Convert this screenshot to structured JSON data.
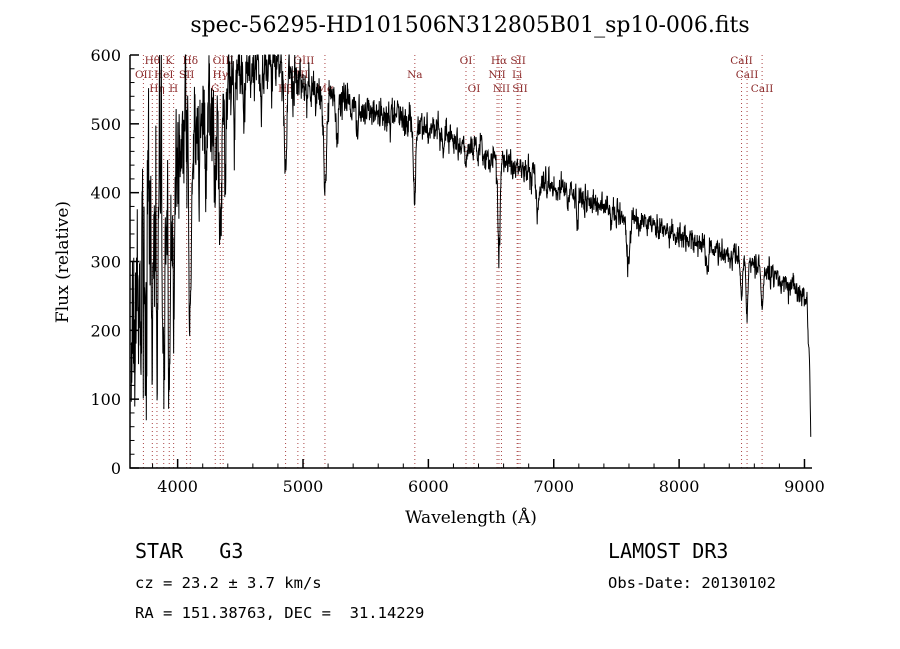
{
  "annotations": {
    "class_label": "STAR   G3",
    "survey": "LAMOST DR3",
    "cz": "cz = 23.2 ± 3.7 km/s",
    "obs_date": "Obs-Date: 20130102",
    "coords": "RA = 151.38763, DEC =  31.14229"
  },
  "colors": {
    "background": "#ffffff",
    "spectrum": "#000000",
    "axis": "#000000",
    "feature_line": "#aa4444",
    "feature_label": "#8b2a2a"
  },
  "chart_data": {
    "type": "line",
    "title": "spec-56295-HD101506N312805B01_sp10-006.fits",
    "xlabel": "Wavelength (Å)",
    "ylabel": "Flux (relative)",
    "xlim": [
      3620,
      9060
    ],
    "ylim": [
      0,
      600
    ],
    "x_major_ticks": [
      4000,
      5000,
      6000,
      7000,
      8000,
      9000
    ],
    "y_major_ticks": [
      0,
      100,
      200,
      300,
      400,
      500,
      600
    ],
    "x_minor_step": 200,
    "y_minor_step": 20,
    "sample_range": [
      3630,
      9050
    ],
    "sample_step": 2,
    "noise_seed": 56295,
    "noise_persistence": 0.45,
    "continuum_anchors": [
      [
        3630,
        170
      ],
      [
        3680,
        240
      ],
      [
        3720,
        280
      ],
      [
        3760,
        315
      ],
      [
        3800,
        345
      ],
      [
        3850,
        385
      ],
      [
        3900,
        420
      ],
      [
        3950,
        442
      ],
      [
        4000,
        462
      ],
      [
        4050,
        482
      ],
      [
        4100,
        500
      ],
      [
        4150,
        515
      ],
      [
        4200,
        530
      ],
      [
        4250,
        538
      ],
      [
        4300,
        546
      ],
      [
        4350,
        553
      ],
      [
        4400,
        560
      ],
      [
        4450,
        566
      ],
      [
        4500,
        572
      ],
      [
        4550,
        578
      ],
      [
        4600,
        584
      ],
      [
        4650,
        588
      ],
      [
        4700,
        590
      ],
      [
        4750,
        589
      ],
      [
        4800,
        586
      ],
      [
        4850,
        581
      ],
      [
        4900,
        576
      ],
      [
        4950,
        568
      ],
      [
        5000,
        561
      ],
      [
        5050,
        556
      ],
      [
        5100,
        551
      ],
      [
        5150,
        545
      ],
      [
        5200,
        541
      ],
      [
        5300,
        536
      ],
      [
        5400,
        529
      ],
      [
        5500,
        522
      ],
      [
        5600,
        516
      ],
      [
        5700,
        511
      ],
      [
        5800,
        507
      ],
      [
        5900,
        502
      ],
      [
        6000,
        493
      ],
      [
        6100,
        488
      ],
      [
        6200,
        478
      ],
      [
        6300,
        469
      ],
      [
        6400,
        459
      ],
      [
        6500,
        452
      ],
      [
        6600,
        446
      ],
      [
        6700,
        438
      ],
      [
        6800,
        429
      ],
      [
        6900,
        419
      ],
      [
        7000,
        409
      ],
      [
        7100,
        401
      ],
      [
        7200,
        393
      ],
      [
        7300,
        386
      ],
      [
        7400,
        379
      ],
      [
        7500,
        372
      ],
      [
        7600,
        363
      ],
      [
        7700,
        360
      ],
      [
        7800,
        353
      ],
      [
        7900,
        346
      ],
      [
        8000,
        338
      ],
      [
        8100,
        330
      ],
      [
        8200,
        323
      ],
      [
        8300,
        316
      ],
      [
        8400,
        309
      ],
      [
        8500,
        301
      ],
      [
        8600,
        293
      ],
      [
        8700,
        285
      ],
      [
        8800,
        273
      ],
      [
        8900,
        262
      ],
      [
        9000,
        247
      ],
      [
        9020,
        237
      ],
      [
        9040,
        160
      ],
      [
        9050,
        40
      ]
    ],
    "noise_amplitude_anchors": [
      [
        3630,
        85
      ],
      [
        3750,
        78
      ],
      [
        3900,
        68
      ],
      [
        4000,
        60
      ],
      [
        4150,
        50
      ],
      [
        4300,
        40
      ],
      [
        4500,
        28
      ],
      [
        4700,
        22
      ],
      [
        4900,
        18
      ],
      [
        5100,
        15
      ],
      [
        5400,
        13
      ],
      [
        5800,
        12
      ],
      [
        6200,
        11
      ],
      [
        6600,
        10
      ],
      [
        7000,
        10
      ],
      [
        7500,
        9
      ],
      [
        8000,
        9
      ],
      [
        8600,
        8
      ],
      [
        9050,
        8
      ]
    ],
    "absorption_features": [
      [
        3727,
        60,
        5
      ],
      [
        3750,
        110,
        6
      ],
      [
        3798,
        170,
        7
      ],
      [
        3835,
        200,
        7
      ],
      [
        3889,
        215,
        8
      ],
      [
        3933,
        255,
        9
      ],
      [
        3970,
        255,
        9
      ],
      [
        4026,
        90,
        5
      ],
      [
        4101,
        290,
        9
      ],
      [
        4172,
        90,
        6
      ],
      [
        4226,
        110,
        6
      ],
      [
        4300,
        130,
        10
      ],
      [
        4340,
        250,
        9
      ],
      [
        4383,
        120,
        7
      ],
      [
        4455,
        75,
        6
      ],
      [
        4531,
        70,
        6
      ],
      [
        4668,
        65,
        6
      ],
      [
        4861,
        170,
        9
      ],
      [
        4920,
        60,
        6
      ],
      [
        5175,
        150,
        11
      ],
      [
        5270,
        70,
        8
      ],
      [
        5430,
        45,
        7
      ],
      [
        5890,
        115,
        9
      ],
      [
        6122,
        35,
        7
      ],
      [
        6300,
        40,
        6
      ],
      [
        6563,
        145,
        9
      ],
      [
        6870,
        55,
        10
      ],
      [
        7190,
        35,
        9
      ],
      [
        7594,
        70,
        12
      ],
      [
        8227,
        35,
        9
      ],
      [
        8498,
        55,
        7
      ],
      [
        8542,
        78,
        7
      ],
      [
        8662,
        65,
        7
      ]
    ],
    "spectral_lines": [
      {
        "label": "Hθ",
        "wavelength": 3798,
        "row": 1
      },
      {
        "label": "K",
        "wavelength": 3933,
        "row": 1
      },
      {
        "label": "Hδ",
        "wavelength": 4101,
        "row": 1
      },
      {
        "label": "OIII",
        "wavelength": 4363,
        "row": 1
      },
      {
        "label": "OIII",
        "wavelength": 5007,
        "row": 1
      },
      {
        "label": "OI",
        "wavelength": 6300,
        "row": 1
      },
      {
        "label": "Hα",
        "wavelength": 6563,
        "row": 1
      },
      {
        "label": "SII",
        "wavelength": 6716,
        "row": 1
      },
      {
        "label": "CaII",
        "wavelength": 8498,
        "row": 1
      },
      {
        "label": "OII",
        "wavelength": 3727,
        "row": 2
      },
      {
        "label": "HeI",
        "wavelength": 3889,
        "row": 2
      },
      {
        "label": "SII",
        "wavelength": 4072,
        "row": 2
      },
      {
        "label": "Hγ",
        "wavelength": 4340,
        "row": 2
      },
      {
        "label": "OIII",
        "wavelength": 4959,
        "row": 2
      },
      {
        "label": "Na",
        "wavelength": 5892,
        "row": 2
      },
      {
        "label": "NII",
        "wavelength": 6548,
        "row": 2
      },
      {
        "label": "Li",
        "wavelength": 6708,
        "row": 2
      },
      {
        "label": "CaII",
        "wavelength": 8542,
        "row": 2
      },
      {
        "label": "Hη",
        "wavelength": 3835,
        "row": 3
      },
      {
        "label": "H",
        "wavelength": 3968,
        "row": 3
      },
      {
        "label": "G",
        "wavelength": 4300,
        "row": 3
      },
      {
        "label": "Hβ",
        "wavelength": 4861,
        "row": 3
      },
      {
        "label": "Mg",
        "wavelength": 5175,
        "row": 3
      },
      {
        "label": "OI",
        "wavelength": 6364,
        "row": 3
      },
      {
        "label": "NII",
        "wavelength": 6583,
        "row": 3
      },
      {
        "label": "SII",
        "wavelength": 6731,
        "row": 3
      },
      {
        "label": "CaII",
        "wavelength": 8662,
        "row": 3
      }
    ]
  }
}
